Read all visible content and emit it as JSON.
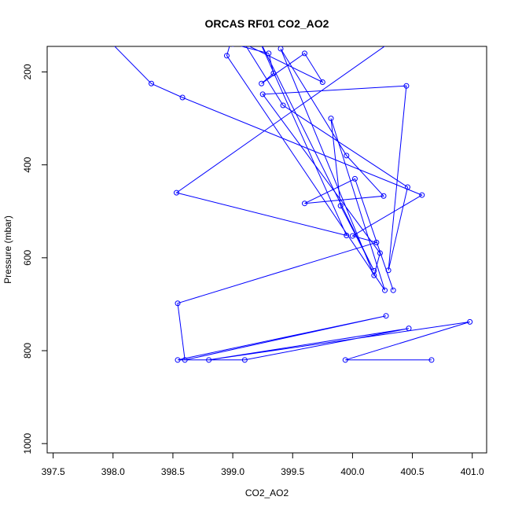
{
  "chart_data": {
    "type": "line",
    "title": "ORCAS RF01 CO2_AO2",
    "xlabel": "CO2_AO2",
    "ylabel": "Pressure (mbar)",
    "xlim": [
      397.45,
      401.12
    ],
    "ylim": [
      1020,
      145
    ],
    "y_reversed": true,
    "grid": false,
    "x_ticks": [
      397.5,
      398.0,
      398.5,
      399.0,
      399.5,
      400.0,
      400.5,
      401.0
    ],
    "x_tick_labels": [
      "397.5",
      "398.0",
      "398.5",
      "399.0",
      "399.5",
      "400.0",
      "400.5",
      "401.0"
    ],
    "y_ticks": [
      200,
      400,
      600,
      800,
      1000
    ],
    "y_tick_labels": [
      "200",
      "400",
      "600",
      "800",
      "1000"
    ],
    "series": [
      {
        "color": "#0000ff",
        "marker": "open-circle",
        "points": [
          [
            397.9,
            115
          ],
          [
            398.32,
            225
          ],
          [
            398.58,
            255
          ],
          [
            400.58,
            465
          ],
          [
            400.0,
            553
          ],
          [
            400.2,
            567
          ],
          [
            398.54,
            698
          ],
          [
            398.6,
            820
          ],
          [
            400.28,
            725
          ],
          [
            398.54,
            820
          ],
          [
            399.1,
            820
          ],
          [
            400.47,
            752
          ],
          [
            398.8,
            820
          ],
          [
            400.98,
            738
          ],
          [
            399.94,
            820
          ],
          [
            400.66,
            820
          ]
        ]
      },
      {
        "color": "#0000ff",
        "marker": "open-circle",
        "points": [
          [
            398.3,
            110
          ],
          [
            399.0,
            140
          ],
          [
            399.3,
            160
          ],
          [
            399.34,
            203
          ],
          [
            399.24,
            225
          ],
          [
            399.6,
            160
          ],
          [
            399.75,
            222
          ],
          [
            399.1,
            140
          ],
          [
            399.42,
            272
          ],
          [
            400.46,
            448
          ],
          [
            400.3,
            627
          ],
          [
            400.45,
            230
          ],
          [
            399.25,
            248
          ],
          [
            400.23,
            590
          ],
          [
            400.18,
            638
          ],
          [
            399.4,
            150
          ],
          [
            399.95,
            380
          ],
          [
            400.26,
            467
          ],
          [
            399.6,
            483
          ],
          [
            400.02,
            430
          ],
          [
            400.34,
            670
          ]
        ]
      },
      {
        "color": "#0000ff",
        "marker": "open-circle",
        "points": [
          [
            399.0,
            120
          ],
          [
            398.95,
            165
          ],
          [
            400.27,
            670
          ],
          [
            399.82,
            300
          ],
          [
            399.9,
            488
          ],
          [
            400.18,
            628
          ],
          [
            399.2,
            120
          ],
          [
            399.95,
            552
          ],
          [
            398.53,
            460
          ],
          [
            400.35,
            130
          ]
        ]
      }
    ]
  }
}
